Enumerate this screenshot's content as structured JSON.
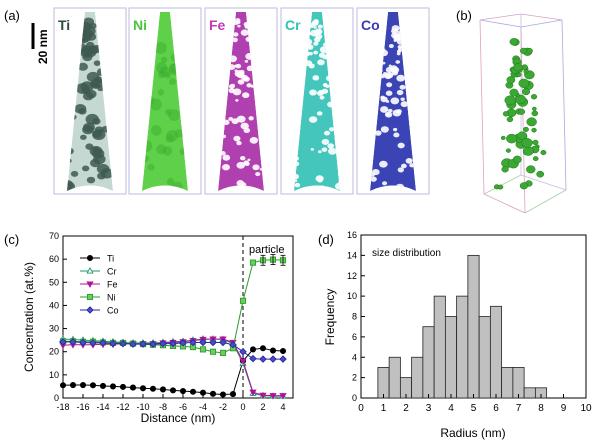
{
  "panels": {
    "a": {
      "label": "(a)",
      "scale_bar": "20 nm",
      "elements": [
        {
          "symbol": "Ti",
          "color": "#2e4a3e",
          "base": "#c6d8d2",
          "spot": "#3e5a50",
          "particle": "dark"
        },
        {
          "symbol": "Ni",
          "color": "#4cc43c",
          "base": "#5fd04a",
          "spot": "#3cae30",
          "particle": "uniform"
        },
        {
          "symbol": "Fe",
          "color": "#c23ab8",
          "base": "#b03fb0",
          "spot": "#ffffff",
          "particle": "light"
        },
        {
          "symbol": "Cr",
          "color": "#2ec4b4",
          "base": "#45c6bc",
          "spot": "#ffffff",
          "particle": "light"
        },
        {
          "symbol": "Co",
          "color": "#3a3ab4",
          "base": "#3a44b4",
          "spot": "#ffffff",
          "particle": "light"
        }
      ]
    },
    "b": {
      "label": "(b)",
      "particle_color": "#3aa832"
    },
    "c": {
      "label": "(c)",
      "annotation": "particle"
    },
    "d": {
      "label": "(d)",
      "annotation": "size distribution"
    }
  },
  "chart_data": [
    {
      "panel": "c",
      "type": "line",
      "xlabel": "Distance (nm)",
      "ylabel": "Concentration (at.%)",
      "xlim": [
        -18,
        5
      ],
      "ylim": [
        0,
        70
      ],
      "xticks": [
        -18,
        -16,
        -14,
        -12,
        -10,
        -8,
        -6,
        -4,
        -2,
        0,
        2,
        4
      ],
      "yticks": [
        0,
        10,
        20,
        30,
        40,
        50,
        60,
        70
      ],
      "interface_x": 0,
      "x": [
        -18,
        -17,
        -16,
        -15,
        -14,
        -13,
        -12,
        -11,
        -10,
        -9,
        -8,
        -7,
        -6,
        -5,
        -4,
        -3,
        -2,
        -1,
        0,
        1,
        2,
        3,
        4
      ],
      "series": [
        {
          "name": "Ti",
          "marker": "circle",
          "color": "#000000",
          "fill": "#000000",
          "values": [
            5.5,
            5.6,
            5.6,
            5.5,
            5.2,
            5.0,
            4.8,
            4.5,
            4.2,
            4.0,
            3.7,
            3.3,
            3.0,
            2.7,
            2.3,
            1.8,
            1.5,
            1.7,
            16.0,
            21.0,
            21.5,
            20.5,
            20.3
          ]
        },
        {
          "name": "Cr",
          "marker": "triangle-up",
          "color": "#1a9a6a",
          "fill": "none",
          "values": [
            25.5,
            25.3,
            25.0,
            24.8,
            24.5,
            24.3,
            24.0,
            23.8,
            23.8,
            23.8,
            24.0,
            24.3,
            24.5,
            25.0,
            25.5,
            25.5,
            25.3,
            23.5,
            15.0,
            2.0,
            1.0,
            0.8,
            0.8
          ]
        },
        {
          "name": "Fe",
          "marker": "triangle-down",
          "color": "#b0139a",
          "fill": "#b0139a",
          "values": [
            22.8,
            23.0,
            23.0,
            23.0,
            23.2,
            23.2,
            23.5,
            23.5,
            23.5,
            23.5,
            23.8,
            24.0,
            24.3,
            24.8,
            25.3,
            25.5,
            25.5,
            24.0,
            16.0,
            2.5,
            1.2,
            1.0,
            1.0
          ]
        },
        {
          "name": "Ni",
          "marker": "square",
          "color": "#2e9a2e",
          "fill": "#6ad05a",
          "values": [
            24.5,
            24.5,
            24.3,
            24.3,
            24.0,
            23.8,
            23.8,
            23.5,
            23.3,
            23.0,
            22.8,
            22.5,
            22.3,
            22.0,
            21.0,
            20.0,
            19.5,
            21.5,
            42.0,
            58.5,
            59.5,
            59.8,
            59.5
          ]
        },
        {
          "name": "Co",
          "marker": "diamond",
          "color": "#2a2a9a",
          "fill": "#4a4ad0",
          "values": [
            24.2,
            24.3,
            24.0,
            23.8,
            23.8,
            23.5,
            23.5,
            23.3,
            23.3,
            23.3,
            23.5,
            23.5,
            23.8,
            24.0,
            24.0,
            24.0,
            24.0,
            23.0,
            20.0,
            17.0,
            16.8,
            16.8,
            16.8
          ]
        }
      ]
    },
    {
      "panel": "d",
      "type": "bar",
      "xlabel": "Radius (nm)",
      "ylabel": "Frequency",
      "xlim": [
        0,
        10
      ],
      "ylim": [
        0,
        16
      ],
      "xticks": [
        0,
        1,
        2,
        3,
        4,
        5,
        6,
        7,
        8,
        9,
        10
      ],
      "yticks": [
        0,
        2,
        4,
        6,
        8,
        10,
        12,
        14,
        16
      ],
      "bin_width": 0.5,
      "bin_starts": [
        0.75,
        1.25,
        1.75,
        2.25,
        2.75,
        3.25,
        3.75,
        4.25,
        4.75,
        5.25,
        5.75,
        6.25,
        6.75,
        7.25,
        7.75
      ],
      "values": [
        3,
        4,
        2,
        4,
        7,
        10,
        8,
        10,
        14,
        8,
        9,
        3,
        3,
        1,
        1
      ],
      "bar_color": "#c0c0c0"
    }
  ]
}
